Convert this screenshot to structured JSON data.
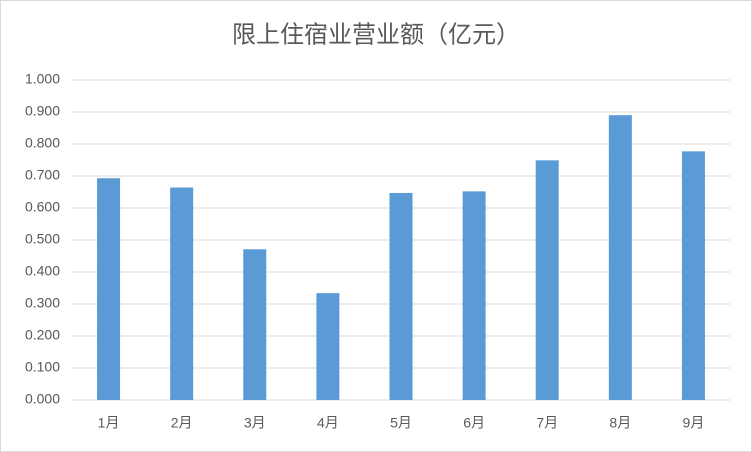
{
  "chart_data": {
    "type": "bar",
    "title": "限上住宿业营业额（亿元）",
    "categories": [
      "1月",
      "2月",
      "3月",
      "4月",
      "5月",
      "6月",
      "7月",
      "8月",
      "9月"
    ],
    "values": [
      0.693,
      0.664,
      0.471,
      0.334,
      0.647,
      0.652,
      0.749,
      0.89,
      0.777
    ],
    "color": "#5b9bd5",
    "ylim": [
      0,
      1
    ],
    "yticks": [
      {
        "value": 0,
        "label": "0.000"
      },
      {
        "value": 0.1,
        "label": "0.100"
      },
      {
        "value": 0.2,
        "label": "0.200"
      },
      {
        "value": 0.3,
        "label": "0.300"
      },
      {
        "value": 0.4,
        "label": "0.400"
      },
      {
        "value": 0.5,
        "label": "0.500"
      },
      {
        "value": 0.6,
        "label": "0.600"
      },
      {
        "value": 0.7,
        "label": "0.700"
      },
      {
        "value": 0.8,
        "label": "0.800"
      },
      {
        "value": 0.9,
        "label": "0.900"
      },
      {
        "value": 1,
        "label": "1.000"
      }
    ],
    "grid": true
  }
}
